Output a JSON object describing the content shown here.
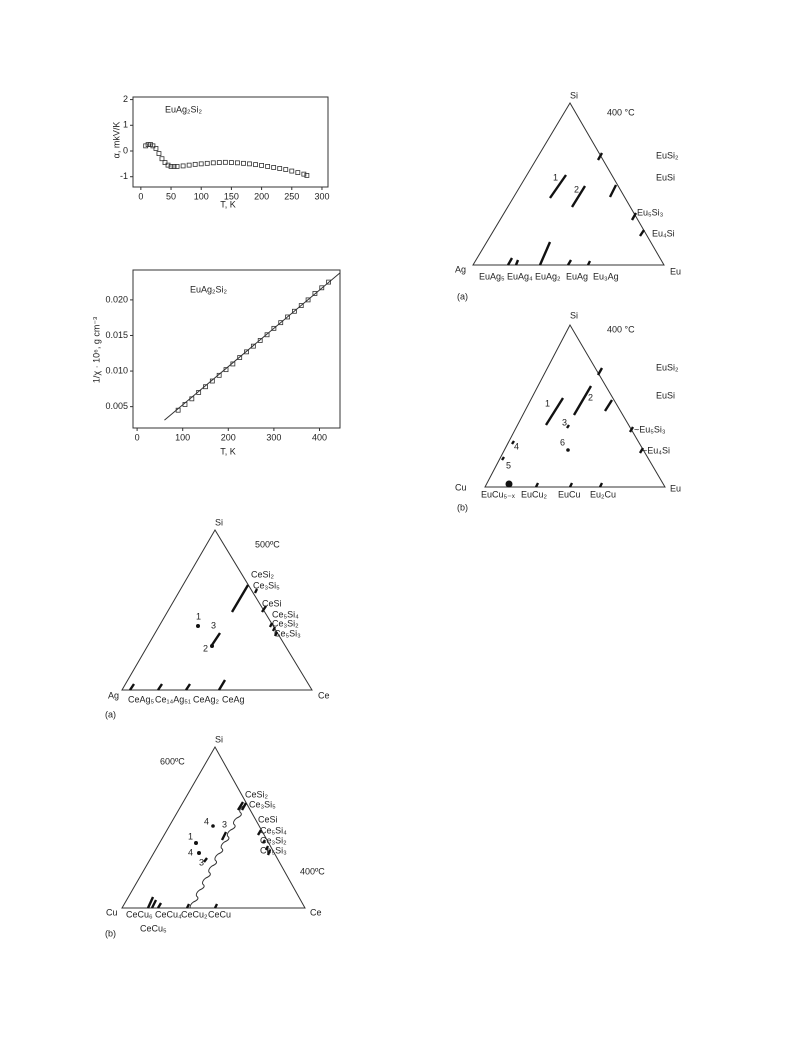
{
  "chart_data": [
    {
      "type": "scatter",
      "title": "EuAg₂Si₂",
      "xlabel": "T, K",
      "ylabel": "α, mkV/K",
      "x": [
        8,
        12,
        16,
        20,
        25,
        30,
        35,
        40,
        45,
        50,
        55,
        60,
        70,
        80,
        90,
        100,
        110,
        120,
        130,
        140,
        150,
        160,
        170,
        180,
        190,
        200,
        210,
        220,
        230,
        240,
        250,
        260,
        270,
        275
      ],
      "values": [
        0.2,
        0.25,
        0.25,
        0.2,
        0.1,
        -0.1,
        -0.3,
        -0.45,
        -0.55,
        -0.6,
        -0.6,
        -0.6,
        -0.58,
        -0.55,
        -0.52,
        -0.5,
        -0.48,
        -0.46,
        -0.45,
        -0.44,
        -0.45,
        -0.46,
        -0.48,
        -0.5,
        -0.53,
        -0.56,
        -0.6,
        -0.64,
        -0.68,
        -0.72,
        -0.78,
        -0.84,
        -0.9,
        -0.95
      ],
      "xlim": [
        -13,
        310
      ],
      "ylim": [
        -1.4,
        2.1
      ],
      "xticks": [
        0,
        50,
        100,
        150,
        200,
        250,
        300
      ],
      "yticks": [
        -1,
        0,
        1,
        2
      ],
      "color": "#333"
    },
    {
      "type": "scatter",
      "title": "EuAg₂Si₂",
      "xlabel": "T, K",
      "ylabel": "1/χ · 10⁶, g cm⁻³",
      "x": [
        90,
        105,
        120,
        135,
        150,
        165,
        180,
        195,
        210,
        225,
        240,
        255,
        270,
        285,
        300,
        315,
        330,
        345,
        360,
        375,
        390,
        405,
        420
      ],
      "values": [
        0.0045,
        0.0053,
        0.0061,
        0.007,
        0.0078,
        0.0086,
        0.0094,
        0.0102,
        0.011,
        0.0119,
        0.0127,
        0.0135,
        0.0143,
        0.0151,
        0.016,
        0.0168,
        0.0176,
        0.0184,
        0.0192,
        0.02,
        0.0209,
        0.0217,
        0.0225
      ],
      "fit": {
        "x": [
          60,
          445
        ],
        "values": [
          0.0031,
          0.0238
        ]
      },
      "xlim": [
        -9,
        445
      ],
      "ylim": [
        0.002,
        0.0242
      ],
      "xticks": [
        0,
        100,
        200,
        300,
        400
      ],
      "yticks": [
        0.005,
        {
          "value": 0.01,
          "label": "0.010"
        },
        0.015,
        {
          "value": 0.02,
          "label": "0.020"
        }
      ],
      "color": "#333"
    }
  ],
  "diagrams": [
    {
      "labels": [
        "Si",
        "400 °C",
        "EuSi₂",
        "EuSi",
        "Eu₅Si₃",
        "Eu₄Si",
        "1",
        "2",
        "Ag",
        "Eu",
        "EuAg₅",
        "EuAg₄",
        "EuAg₂",
        "EuAg",
        "Eu₃Ag",
        "(a)"
      ]
    },
    {
      "labels": [
        "Si",
        "400 °C",
        "EuSi₂",
        "2",
        "1",
        "EuSi",
        "3",
        "~Eu₅Si₃",
        "6",
        "4",
        "~Eu₄Si",
        "5",
        "Cu",
        "Eu",
        "EuCu₅₋ₓ",
        "EuCu₂",
        "EuCu",
        "Eu₂Cu",
        "(b)"
      ]
    },
    {
      "labels": [
        "Si",
        "500ºC",
        "CeSi₂",
        "Ce₃Si₅",
        "CeSi",
        "Ce₅Si₄",
        "Ce₃Si₂",
        "Ce₅Si₃",
        "1",
        "3",
        "2",
        "Ag",
        "Ce",
        "CeAg₅",
        "Ce₁₄Ag₅₁",
        "CeAg₂",
        "CeAg",
        "(a)"
      ]
    },
    {
      "labels": [
        "Si",
        "600ºC",
        "CeSi₂",
        "Ce₃Si₅",
        "4",
        "3",
        "CeSi",
        "Ce₅Si₄",
        "Ce₃Si₂",
        "1",
        "Ce₅Si₃",
        "4",
        "3",
        "400ºC",
        "Cu",
        "Ce",
        "CeCu₆",
        "CeCu₄",
        "CeCu₂",
        "CeCu",
        "CeCu₅",
        "(b)"
      ]
    }
  ]
}
